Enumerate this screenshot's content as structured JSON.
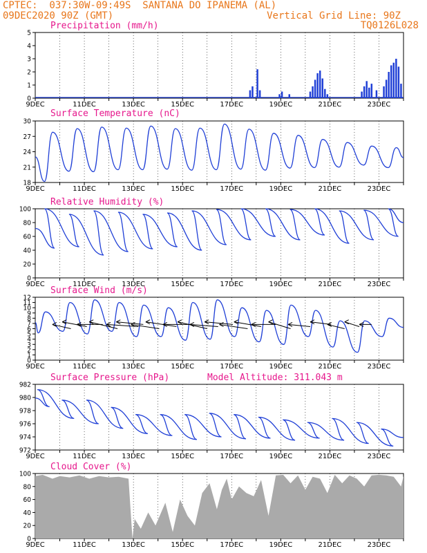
{
  "header": {
    "line1_left": "CPTEC:  037:30W-09:49S  SANTANA DO IPANEMA (AL)",
    "line2_left": "09DEC2020 90Z (GMT)",
    "line2_right": "Vertical Grid Line: 90Z",
    "line3_right": "TQ0126L028"
  },
  "colors": {
    "header": "#e8761a",
    "title": "#e6178c",
    "line": "#1f3fd6",
    "cloud": "#aaaaaa"
  },
  "x_ticks": [
    "9DEC",
    "11DEC",
    "13DEC",
    "15DEC",
    "17DEC",
    "19DEC",
    "21DEC",
    "23DEC"
  ],
  "chart_data": [
    {
      "type": "bar",
      "title": "Precipitation (mm/h)",
      "x_range": [
        "09DEC2020",
        "24DEC2020"
      ],
      "ylim": [
        0,
        5
      ],
      "yticks": [
        0,
        1,
        2,
        3,
        4,
        5
      ],
      "bars": [
        [
          8.75,
          0.6
        ],
        [
          8.85,
          0.9
        ],
        [
          9.05,
          2.2
        ],
        [
          9.15,
          0.6
        ],
        [
          9.95,
          0.3
        ],
        [
          10.05,
          0.5
        ],
        [
          10.35,
          0.3
        ],
        [
          11.2,
          0.5
        ],
        [
          11.3,
          0.9
        ],
        [
          11.4,
          1.4
        ],
        [
          11.5,
          1.9
        ],
        [
          11.6,
          2.1
        ],
        [
          11.7,
          1.5
        ],
        [
          11.8,
          0.7
        ],
        [
          11.9,
          0.3
        ],
        [
          13.3,
          0.5
        ],
        [
          13.4,
          0.9
        ],
        [
          13.5,
          1.3
        ],
        [
          13.6,
          0.8
        ],
        [
          13.7,
          1.1
        ],
        [
          13.9,
          0.6
        ],
        [
          14.2,
          0.9
        ],
        [
          14.3,
          1.4
        ],
        [
          14.4,
          2.0
        ],
        [
          14.5,
          2.5
        ],
        [
          14.6,
          2.7
        ],
        [
          14.7,
          3.0
        ],
        [
          14.8,
          2.4
        ],
        [
          14.9,
          1.1
        ]
      ]
    },
    {
      "type": "line",
      "title": "Surface Temperature (nC)",
      "ylim": [
        18,
        30
      ],
      "yticks": [
        18,
        21,
        24,
        27,
        30
      ],
      "daily_min": [
        18.2,
        20.2,
        20.1,
        20.5,
        20.5,
        20.6,
        20.4,
        20.5,
        20.6,
        20.4,
        20.8,
        20.9,
        21.0,
        21.4,
        20.9
      ],
      "daily_max": [
        27.8,
        28.5,
        28.8,
        28.6,
        29.0,
        28.5,
        28.6,
        29.4,
        28.4,
        27.6,
        27.2,
        26.4,
        25.8,
        25.1,
        24.8
      ]
    },
    {
      "type": "line",
      "title": "Relative Humidity (%)",
      "ylim": [
        0,
        100
      ],
      "yticks": [
        0,
        20,
        40,
        60,
        80,
        100
      ],
      "daily_min": [
        43,
        45,
        33,
        38,
        42,
        45,
        40,
        48,
        55,
        60,
        55,
        62,
        50,
        55,
        60
      ],
      "daily_max": [
        100,
        92,
        97,
        95,
        92,
        94,
        97,
        99,
        100,
        100,
        99,
        100,
        97,
        98,
        100
      ]
    },
    {
      "type": "line",
      "title": "Surface Wind (m/s)",
      "ylim": [
        0,
        12
      ],
      "yticks": [
        0,
        1,
        2,
        3,
        4,
        5,
        6,
        7,
        8,
        9,
        10,
        11,
        12
      ],
      "daily_min": [
        5.2,
        5.5,
        5.0,
        5.5,
        4.5,
        4.5,
        3.8,
        4.0,
        4.5,
        3.5,
        3.0,
        4.5,
        2.5,
        1.5,
        4.5
      ],
      "daily_max": [
        9.2,
        11.0,
        11.5,
        11.0,
        10.5,
        10.0,
        11.0,
        11.5,
        10.0,
        9.5,
        10.5,
        9.5,
        7.5,
        7.5,
        8.0
      ]
    },
    {
      "type": "line",
      "title": "Surface Pressure (hPa)",
      "annotation": "Model Altitude: 311.043 m",
      "ylim": [
        972,
        982
      ],
      "yticks": [
        972,
        974,
        976,
        978,
        980,
        982
      ],
      "daily_min": [
        978.6,
        976.8,
        976.0,
        975.3,
        974.5,
        974.2,
        973.6,
        974.0,
        973.7,
        973.8,
        973.5,
        973.8,
        973.5,
        973.0,
        972.6
      ],
      "daily_max": [
        981.2,
        979.6,
        979.6,
        978.5,
        977.4,
        977.4,
        977.4,
        977.6,
        977.4,
        977.0,
        976.6,
        976.2,
        976.8,
        976.2,
        975.2
      ]
    },
    {
      "type": "area",
      "title": "Cloud Cover (%)",
      "ylim": [
        0,
        100
      ],
      "yticks": [
        0,
        20,
        40,
        60,
        80,
        100
      ],
      "x": [
        0,
        0.3,
        0.7,
        1.0,
        1.4,
        1.8,
        2.2,
        2.6,
        3.0,
        3.4,
        3.8,
        3.96,
        4.05,
        4.3,
        4.6,
        4.9,
        5.3,
        5.6,
        5.9,
        6.2,
        6.5,
        6.8,
        7.1,
        7.4,
        7.6,
        7.8,
        8.0,
        8.3,
        8.6,
        8.9,
        9.2,
        9.5,
        9.8,
        10.1,
        10.4,
        10.7,
        11.0,
        11.3,
        11.6,
        11.9,
        12.2,
        12.5,
        12.8,
        13.1,
        13.4,
        13.7,
        14.0,
        14.3,
        14.6,
        14.9,
        15.0
      ],
      "values": [
        96,
        98,
        92,
        96,
        94,
        97,
        92,
        96,
        94,
        95,
        92,
        0,
        30,
        15,
        40,
        20,
        55,
        10,
        60,
        35,
        20,
        70,
        85,
        45,
        75,
        92,
        60,
        80,
        70,
        65,
        90,
        35,
        97,
        98,
        85,
        97,
        75,
        95,
        92,
        70,
        98,
        85,
        97,
        92,
        80,
        97,
        98,
        97,
        95,
        80,
        96
      ]
    }
  ],
  "panels": [
    {
      "title": "Precipitation (mm/h)"
    },
    {
      "title": "Surface Temperature (nC)"
    },
    {
      "title": "Relative Humidity (%)"
    },
    {
      "title": "Surface Wind (m/s)"
    },
    {
      "title": "Surface Pressure (hPa)",
      "annotation": "Model Altitude: 311.043 m"
    },
    {
      "title": "Cloud Cover (%)"
    }
  ]
}
